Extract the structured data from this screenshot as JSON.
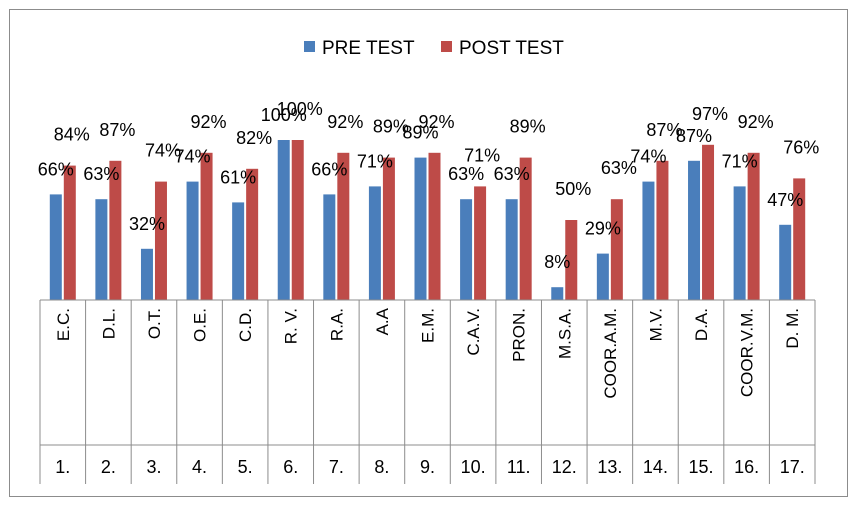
{
  "chart_data": {
    "type": "bar",
    "title": "",
    "xlabel": "",
    "ylabel": "",
    "ylim": [
      0,
      100
    ],
    "grid": false,
    "legend_position": "top",
    "categories": [
      "E.C.",
      "D.L.",
      "O.T.",
      "O.E.",
      "C.D.",
      "R. V.",
      "R.A.",
      "A.A",
      "E.M.",
      "C.A.V.",
      "PRON.",
      "M.S.A.",
      "COOR.A.M.",
      "M.V.",
      "D.A.",
      "COOR.V.M.",
      "D. M."
    ],
    "indices": [
      "1.",
      "2.",
      "3.",
      "4.",
      "5.",
      "6.",
      "7.",
      "8.",
      "9.",
      "10.",
      "11.",
      "12.",
      "13.",
      "14.",
      "15.",
      "16.",
      "17."
    ],
    "series": [
      {
        "name": "PRE TEST",
        "color": "#4a7ebb",
        "values": [
          66,
          63,
          32,
          74,
          61,
          100,
          66,
          71,
          89,
          63,
          63,
          8,
          29,
          74,
          87,
          71,
          47
        ],
        "labels": [
          "66%",
          "63%",
          "32%",
          "74%",
          "61%",
          "100%",
          "66%",
          "71%",
          "89%",
          "63%",
          "63%",
          "8%",
          "29%",
          "74%",
          "87%",
          "71%",
          "47%"
        ]
      },
      {
        "name": "POST TEST",
        "color": "#be4b48",
        "values": [
          84,
          87,
          74,
          92,
          82,
          100,
          92,
          89,
          92,
          71,
          89,
          50,
          63,
          87,
          97,
          92,
          76
        ],
        "labels": [
          "84%",
          "87%",
          "74%",
          "92%",
          "82%",
          "100%",
          "92%",
          "89%",
          "92%",
          "71%",
          "89%",
          "50%",
          "63%",
          "87%",
          "97%",
          "92%",
          "76%"
        ]
      }
    ]
  }
}
